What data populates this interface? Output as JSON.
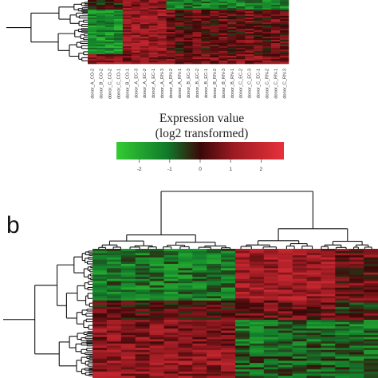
{
  "chart_data": [
    {
      "type": "heatmap",
      "panel_label": "",
      "columns": [
        "donor_A_CO-2",
        "donor_B_CO-2",
        "donor_C_CO-2",
        "donor_C_CO-1",
        "donor_B_CO-1",
        "donor_A_EC-3",
        "donor_A_EC-2",
        "donor_A_EC-1",
        "donor_A_RN-3",
        "donor_A_RN-2",
        "donor_A_RN-1",
        "donor_B_EC-3",
        "donor_B_EC-2",
        "donor_B_EC-1",
        "donor_B_RN-2",
        "donor_B_RN-3",
        "donor_B_RN-1",
        "donor_C_EC-2",
        "donor_C_EC-3",
        "donor_C_EC-1",
        "donor_C_RN-2",
        "donor_C_RN-1",
        "donor_C_RN-3"
      ],
      "legend": {
        "title_line1": "Expression value",
        "title_line2": "(log2 transformed)",
        "ticks": [
          "-2",
          "-1",
          "0",
          "1",
          "2"
        ],
        "range": [
          -2.75,
          2.75
        ],
        "colors": [
          "#33cc33",
          "#117a2b",
          "#3a0808",
          "#9b1b22",
          "#e8313a"
        ]
      }
    },
    {
      "type": "heatmap",
      "panel_label": "b",
      "legend_colors": [
        "#33cc33",
        "#117a2b",
        "#3a0808",
        "#9b1b22",
        "#e8313a"
      ]
    }
  ]
}
